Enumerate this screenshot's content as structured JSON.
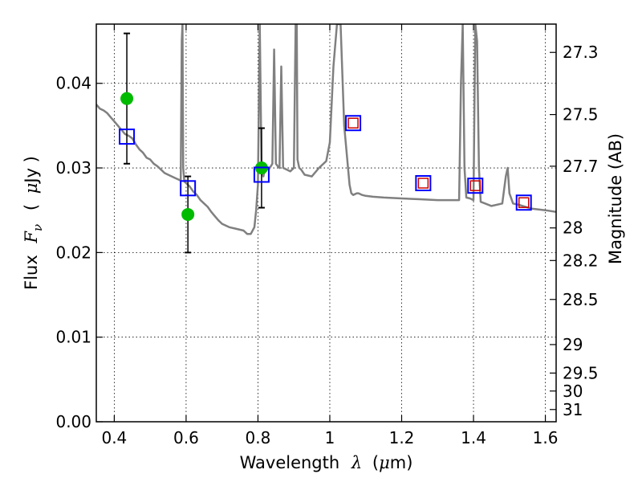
{
  "chart_data": {
    "type": "scatter",
    "title": "",
    "xlabel": "Wavelength",
    "xlabel_symbol": "λ",
    "xlabel_unit_open": "(",
    "xlabel_unit_mu": "μ",
    "xlabel_unit_rest": "m)",
    "ylabel_left": "Flux",
    "ylabel_symbol": "F",
    "ylabel_sub": "ν",
    "ylabel_unit_open": "(",
    "ylabel_unit_mu": "μ",
    "ylabel_unit_rest": "Jy )",
    "ylabel_right": "Magnitude (AB)",
    "xlim": [
      0.35,
      1.63
    ],
    "ylim": [
      0.0,
      0.047
    ],
    "grid": true,
    "x_ticks": [
      0.4,
      0.6,
      0.8,
      1.0,
      1.2,
      1.4,
      1.6
    ],
    "x_tick_labels": [
      "0.4",
      "0.6",
      "0.8",
      "1",
      "1.2",
      "1.4",
      "1.6"
    ],
    "y_ticks": [
      0.0,
      0.01,
      0.02,
      0.03,
      0.04
    ],
    "y_tick_labels": [
      "0.00",
      "0.01",
      "0.02",
      "0.03",
      "0.04"
    ],
    "mag_ticks": [
      27.3,
      27.5,
      27.7,
      28,
      28.2,
      28.5,
      29,
      29.5,
      30,
      31
    ],
    "mag_tick_labels": [
      "27.3",
      "27.5",
      "27.7",
      "28",
      "28.2",
      "28.5",
      "29",
      "29.5",
      "30",
      "31"
    ],
    "colors": {
      "sed": "#808080",
      "observed": "#00bb00",
      "errorbar": "#000000",
      "model_box": "#0000ff",
      "model_inner": "#cc0000"
    },
    "series": [
      {
        "kind": "model_sed",
        "x": [
          0.35,
          0.36,
          0.37,
          0.38,
          0.39,
          0.4,
          0.41,
          0.42,
          0.43,
          0.44,
          0.45,
          0.46,
          0.47,
          0.48,
          0.49,
          0.5,
          0.51,
          0.52,
          0.53,
          0.54,
          0.55,
          0.56,
          0.57,
          0.58,
          0.585,
          0.588,
          0.59,
          0.592,
          0.595,
          0.6,
          0.61,
          0.62,
          0.63,
          0.64,
          0.65,
          0.66,
          0.67,
          0.68,
          0.69,
          0.7,
          0.72,
          0.74,
          0.76,
          0.77,
          0.775,
          0.78,
          0.79,
          0.795,
          0.8,
          0.805,
          0.81,
          0.815,
          0.82,
          0.83,
          0.84,
          0.845,
          0.85,
          0.855,
          0.86,
          0.865,
          0.87,
          0.88,
          0.89,
          0.9,
          0.905,
          0.908,
          0.91,
          0.915,
          0.92,
          0.93,
          0.95,
          0.97,
          0.99,
          1.0,
          1.01,
          1.02,
          1.03,
          1.04,
          1.055,
          1.06,
          1.065,
          1.07,
          1.075,
          1.08,
          1.09,
          1.1,
          1.12,
          1.15,
          1.2,
          1.25,
          1.3,
          1.34,
          1.36,
          1.365,
          1.37,
          1.375,
          1.38,
          1.39,
          1.4,
          1.405,
          1.41,
          1.415,
          1.42,
          1.45,
          1.48,
          1.49,
          1.495,
          1.5,
          1.51,
          1.53,
          1.56,
          1.6,
          1.63
        ],
        "y": [
          0.0375,
          0.037,
          0.0368,
          0.0365,
          0.036,
          0.0355,
          0.035,
          0.0345,
          0.034,
          0.0338,
          0.0335,
          0.0328,
          0.0322,
          0.0318,
          0.0312,
          0.031,
          0.0305,
          0.0302,
          0.0298,
          0.0294,
          0.0292,
          0.029,
          0.0288,
          0.0286,
          0.0285,
          0.045,
          0.047,
          0.03,
          0.0284,
          0.0282,
          0.0278,
          0.0272,
          0.0268,
          0.0262,
          0.0258,
          0.0254,
          0.0248,
          0.0243,
          0.0238,
          0.0234,
          0.023,
          0.0228,
          0.0226,
          0.0222,
          0.0222,
          0.0222,
          0.023,
          0.025,
          0.028,
          0.047,
          0.03,
          0.029,
          0.03,
          0.0298,
          0.0305,
          0.044,
          0.0305,
          0.0302,
          0.03,
          0.042,
          0.03,
          0.0298,
          0.0296,
          0.03,
          0.047,
          0.047,
          0.031,
          0.03,
          0.0298,
          0.0292,
          0.029,
          0.03,
          0.0308,
          0.033,
          0.042,
          0.047,
          0.047,
          0.035,
          0.028,
          0.027,
          0.0268,
          0.0269,
          0.027,
          0.027,
          0.0268,
          0.0267,
          0.0266,
          0.0265,
          0.0264,
          0.0263,
          0.0262,
          0.0262,
          0.0262,
          0.04,
          0.047,
          0.03,
          0.0265,
          0.0264,
          0.0262,
          0.047,
          0.045,
          0.03,
          0.026,
          0.0255,
          0.0258,
          0.029,
          0.03,
          0.027,
          0.0258,
          0.0256,
          0.0252,
          0.025,
          0.0248
        ]
      },
      {
        "kind": "observed",
        "x": [
          0.435,
          0.605,
          0.81
        ],
        "y": [
          0.0382,
          0.0245,
          0.03
        ],
        "yerr": [
          0.0077,
          0.0045,
          0.0047
        ]
      },
      {
        "kind": "model_bands",
        "x": [
          0.435,
          0.605,
          0.81,
          1.065,
          1.26,
          1.405,
          1.54
        ],
        "y": [
          0.0337,
          0.0276,
          0.0292,
          0.0353,
          0.0282,
          0.0279,
          0.0259
        ],
        "inner": [
          false,
          false,
          false,
          true,
          true,
          true,
          true
        ]
      }
    ]
  }
}
